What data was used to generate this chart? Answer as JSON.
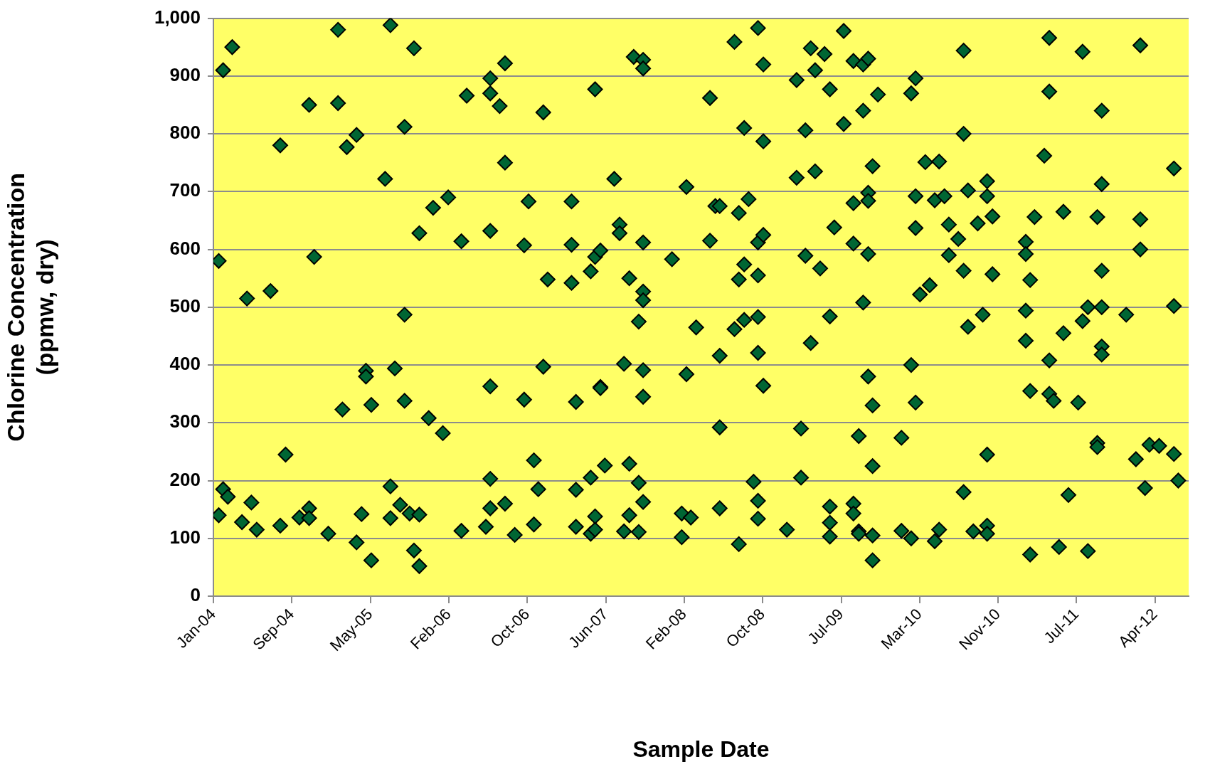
{
  "chart_data": {
    "type": "scatter",
    "xlabel": "Sample Date",
    "ylabel": "Chlorine Concentration\n(ppmw, dry)",
    "xlim": [
      "2004-01-15",
      "2012-07-18"
    ],
    "xticks": [
      {
        "value": "2004-01-15",
        "label": "Jan-04"
      },
      {
        "value": "2004-09-21",
        "label": "Sep-04"
      },
      {
        "value": "2005-05-29",
        "label": "May-05"
      },
      {
        "value": "2006-02-03",
        "label": "Feb-06"
      },
      {
        "value": "2006-10-11",
        "label": "Oct-06"
      },
      {
        "value": "2007-06-18",
        "label": "Jun-07"
      },
      {
        "value": "2008-02-23",
        "label": "Feb-08"
      },
      {
        "value": "2008-10-30",
        "label": "Oct-08"
      },
      {
        "value": "2009-07-07",
        "label": "Jul-09"
      },
      {
        "value": "2010-03-14",
        "label": "Mar-10"
      },
      {
        "value": "2010-11-19",
        "label": "Nov-10"
      },
      {
        "value": "2011-07-27",
        "label": "Jul-11"
      },
      {
        "value": "2012-04-02",
        "label": "Apr-12"
      }
    ],
    "ylim": [
      0,
      1000
    ],
    "yticks": [
      0,
      100,
      200,
      300,
      400,
      500,
      600,
      700,
      800,
      900,
      {
        "value": 1000,
        "label": "1,000"
      }
    ],
    "grid": "y",
    "legend": false,
    "marker": "diamond",
    "series": [
      {
        "color": "#006633",
        "x": [
          "2004-02-01",
          "2004-02-15",
          "2004-03-15",
          "2004-02-15",
          "2004-03-01",
          "2004-02-01",
          "2004-04-15",
          "2004-05-01",
          "2004-05-15",
          "2004-06-01",
          "2004-07-15",
          "2004-08-15",
          "2004-08-15",
          "2004-09-01",
          "2004-10-15",
          "2004-11-15",
          "2004-11-15",
          "2004-12-01",
          "2004-11-15",
          "2005-01-15",
          "2005-02-15",
          "2005-02-15",
          "2005-03-01",
          "2005-03-15",
          "2005-04-15",
          "2005-04-15",
          "2005-05-01",
          "2005-05-15",
          "2005-05-15",
          "2005-06-01",
          "2005-06-01",
          "2005-07-15",
          "2005-08-01",
          "2005-08-01",
          "2005-08-15",
          "2005-08-01",
          "2005-09-01",
          "2005-09-15",
          "2005-09-15",
          "2005-09-15",
          "2005-10-01",
          "2005-10-15",
          "2005-11-01",
          "2005-10-15",
          "2005-11-01",
          "2005-11-01",
          "2005-12-01",
          "2005-12-15",
          "2006-01-15",
          "2006-02-01",
          "2006-03-15",
          "2006-03-15",
          "2006-04-01",
          "2006-06-15",
          "2006-06-15",
          "2006-06-15",
          "2006-06-15",
          "2006-06-15",
          "2006-06-15",
          "2006-06-01",
          "2006-07-15",
          "2006-08-01",
          "2006-08-01",
          "2006-08-01",
          "2006-09-01",
          "2006-10-01",
          "2006-10-01",
          "2006-10-15",
          "2006-11-01",
          "2006-11-15",
          "2006-11-01",
          "2006-12-01",
          "2006-12-01",
          "2006-12-15",
          "2007-03-01",
          "2007-03-01",
          "2007-03-01",
          "2007-03-15",
          "2007-03-15",
          "2007-03-15",
          "2007-05-01",
          "2007-05-01",
          "2007-05-01",
          "2007-05-15",
          "2007-05-15",
          "2007-05-15",
          "2007-05-15",
          "2007-06-01",
          "2007-06-01",
          "2007-06-01",
          "2007-06-15",
          "2007-07-15",
          "2007-08-01",
          "2007-08-01",
          "2007-08-15",
          "2007-08-15",
          "2007-09-01",
          "2007-09-01",
          "2007-09-01",
          "2007-09-15",
          "2007-10-01",
          "2007-10-01",
          "2007-10-01",
          "2007-10-15",
          "2007-10-15",
          "2007-10-15",
          "2007-10-15",
          "2007-10-15",
          "2007-10-15",
          "2007-10-15",
          "2007-10-15",
          "2008-01-15",
          "2008-02-15",
          "2008-02-15",
          "2008-03-01",
          "2008-03-01",
          "2008-03-15",
          "2008-04-01",
          "2008-05-15",
          "2008-05-15",
          "2008-06-01",
          "2008-06-15",
          "2008-06-15",
          "2008-06-15",
          "2008-06-15",
          "2008-08-01",
          "2008-08-01",
          "2008-08-15",
          "2008-08-15",
          "2008-08-15",
          "2008-09-01",
          "2008-09-01",
          "2008-09-01",
          "2008-09-15",
          "2008-10-01",
          "2008-10-15",
          "2008-10-15",
          "2008-10-15",
          "2008-10-15",
          "2008-10-15",
          "2008-10-15",
          "2008-10-15",
          "2008-11-01",
          "2008-11-01",
          "2008-11-01",
          "2008-11-01",
          "2009-01-15",
          "2009-02-15",
          "2009-02-15",
          "2009-03-01",
          "2009-03-01",
          "2009-03-15",
          "2009-03-15",
          "2009-04-01",
          "2009-04-01",
          "2009-04-15",
          "2009-04-15",
          "2009-05-01",
          "2009-05-15",
          "2009-06-01",
          "2009-06-01",
          "2009-06-01",
          "2009-06-01",
          "2009-06-01",
          "2009-06-15",
          "2009-07-15",
          "2009-07-15",
          "2009-08-15",
          "2009-08-15",
          "2009-08-15",
          "2009-08-15",
          "2009-08-15",
          "2009-09-01",
          "2009-09-01",
          "2009-09-15",
          "2009-09-15",
          "2009-09-01",
          "2009-09-15",
          "2009-10-01",
          "2009-10-01",
          "2009-10-01",
          "2009-10-01",
          "2009-10-01",
          "2009-10-15",
          "2009-10-15",
          "2009-10-15",
          "2009-10-15",
          "2009-10-15",
          "2009-11-01",
          "2010-01-15",
          "2010-01-15",
          "2010-02-15",
          "2010-02-15",
          "2010-02-15",
          "2010-03-01",
          "2010-03-01",
          "2010-03-01",
          "2010-03-01",
          "2010-03-15",
          "2010-04-01",
          "2010-04-15",
          "2010-05-01",
          "2010-05-01",
          "2010-05-15",
          "2010-05-15",
          "2010-06-01",
          "2010-06-15",
          "2010-06-15",
          "2010-07-15",
          "2010-08-01",
          "2010-08-01",
          "2010-08-01",
          "2010-08-01",
          "2010-08-15",
          "2010-08-15",
          "2010-09-01",
          "2010-09-15",
          "2010-10-01",
          "2010-10-15",
          "2010-10-15",
          "2010-10-15",
          "2010-10-15",
          "2010-10-15",
          "2010-11-01",
          "2010-11-01",
          "2011-02-15",
          "2011-02-15",
          "2011-02-15",
          "2011-02-15",
          "2011-03-01",
          "2011-03-01",
          "2011-03-01",
          "2011-03-15",
          "2011-04-15",
          "2011-05-01",
          "2011-05-01",
          "2011-05-01",
          "2011-05-01",
          "2011-05-15",
          "2011-06-01",
          "2011-06-15",
          "2011-06-15",
          "2011-07-01",
          "2011-08-01",
          "2011-08-15",
          "2011-08-15",
          "2011-09-01",
          "2011-09-01",
          "2011-10-01",
          "2011-10-01",
          "2011-10-01",
          "2011-10-15",
          "2011-10-15",
          "2011-10-15",
          "2011-10-15",
          "2011-10-15",
          "2011-10-15",
          "2012-01-01",
          "2012-02-01",
          "2012-02-15",
          "2012-02-15",
          "2012-02-15",
          "2012-03-01",
          "2012-03-15",
          "2012-04-15",
          "2012-06-01",
          "2012-06-01",
          "2012-06-01",
          "2012-06-15"
        ],
        "values": [
          580,
          910,
          950,
          185,
          172,
          140,
          128,
          515,
          162,
          115,
          528,
          780,
          122,
          245,
          136,
          152,
          850,
          587,
          135,
          108,
          980,
          853,
          323,
          777,
          798,
          93,
          142,
          390,
          380,
          331,
          62,
          722,
          988,
          190,
          394,
          135,
          158,
          812,
          487,
          338,
          143,
          948,
          628,
          79,
          52,
          141,
          308,
          672,
          282,
          690,
          113,
          614,
          866,
          896,
          632,
          363,
          203,
          870,
          152,
          120,
          848,
          922,
          750,
          160,
          106,
          607,
          340,
          683,
          235,
          185,
          124,
          837,
          397,
          548,
          608,
          683,
          542,
          336,
          184,
          120,
          108,
          205,
          562,
          877,
          587,
          115,
          138,
          362,
          360,
          598,
          226,
          722,
          643,
          628,
          402,
          112,
          229,
          140,
          550,
          933,
          475,
          111,
          196,
          163,
          928,
          913,
          612,
          527,
          512,
          391,
          345,
          583,
          102,
          143,
          708,
          384,
          136,
          465,
          862,
          615,
          675,
          416,
          292,
          675,
          152,
          959,
          462,
          548,
          663,
          90,
          574,
          810,
          478,
          687,
          198,
          612,
          555,
          421,
          983,
          483,
          165,
          134,
          920,
          787,
          364,
          625,
          115,
          893,
          724,
          290,
          205,
          806,
          589,
          438,
          948,
          735,
          910,
          567,
          938,
          877,
          155,
          127,
          103,
          484,
          638,
          978,
          817,
          610,
          680,
          926,
          160,
          143,
          112,
          277,
          920,
          840,
          108,
          508,
          930,
          380,
          698,
          684,
          592,
          744,
          62,
          105,
          225,
          330,
          868,
          274,
          113,
          100,
          400,
          870,
          692,
          335,
          637,
          896,
          522,
          751,
          538,
          95,
          685,
          752,
          115,
          692,
          643,
          590,
          618,
          944,
          800,
          563,
          180,
          702,
          466,
          112,
          645,
          487,
          122,
          245,
          692,
          718,
          108,
          657,
          557,
          494,
          613,
          592,
          442,
          72,
          355,
          547,
          656,
          762,
          873,
          966,
          408,
          350,
          338,
          85,
          665,
          455,
          175,
          335,
          942,
          476,
          78,
          500,
          656,
          265,
          258,
          713,
          563,
          840,
          500,
          432,
          418,
          487,
          237,
          600,
          652,
          953,
          187,
          262,
          260,
          740,
          246,
          502,
          200
        ]
      }
    ]
  }
}
